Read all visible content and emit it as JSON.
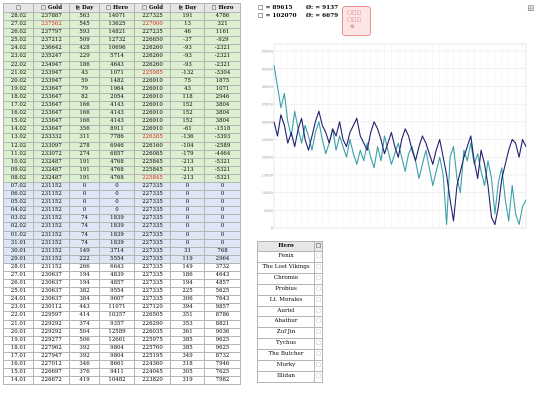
{
  "table": {
    "headers": [
      "□",
      "□ Gold",
      "⊵ Day",
      "□ Hero",
      "□ Gold",
      "⊵ Day",
      "□ Hero"
    ],
    "rows": [
      {
        "date": "28.02",
        "c1": "237887",
        "c2": "563",
        "c3": "14071",
        "c4": "227325",
        "c5": "191",
        "c6": "4786",
        "shade": "g",
        "red": false
      },
      {
        "date": "27.02",
        "c1": "237562",
        "c2": "545",
        "c3": "13625",
        "c4": "227000",
        "c5": "13",
        "c6": "321",
        "shade": "g",
        "red": true
      },
      {
        "date": "26.02",
        "c1": "237797",
        "c2": "593",
        "c3": "14821",
        "c4": "227235",
        "c5": "46",
        "c6": "1161",
        "shade": "g",
        "red": false
      },
      {
        "date": "25.02",
        "c1": "237212",
        "c2": "509",
        "c3": "12732",
        "c4": "226650",
        "c5": "-37",
        "c6": "-929",
        "shade": "g",
        "red": false
      },
      {
        "date": "24.02",
        "c1": "236642",
        "c2": "428",
        "c3": "10696",
        "c4": "226260",
        "c5": "-93",
        "c6": "-2321",
        "shade": "g",
        "red": false
      },
      {
        "date": "23.02",
        "c1": "235247",
        "c2": "229",
        "c3": "5714",
        "c4": "226260",
        "c5": "-93",
        "c6": "-2321",
        "shade": "g",
        "red": false
      },
      {
        "date": "22.02",
        "c1": "234947",
        "c2": "186",
        "c3": "4643",
        "c4": "226260",
        "c5": "-93",
        "c6": "-2321",
        "shade": "g",
        "red": false
      },
      {
        "date": "21.02",
        "c1": "233947",
        "c2": "43",
        "c3": "1071",
        "c4": "225985",
        "c5": "-132",
        "c6": "-3304",
        "shade": "g",
        "red": true
      },
      {
        "date": "20.02",
        "c1": "233947",
        "c2": "59",
        "c3": "1482",
        "c4": "226910",
        "c5": "75",
        "c6": "1875",
        "shade": "g",
        "red": false
      },
      {
        "date": "19.02",
        "c1": "233647",
        "c2": "79",
        "c3": "1964",
        "c4": "226910",
        "c5": "43",
        "c6": "1071",
        "shade": "g",
        "red": false
      },
      {
        "date": "18.02",
        "c1": "233647",
        "c2": "82",
        "c3": "2054",
        "c4": "226910",
        "c5": "118",
        "c6": "2946",
        "shade": "g",
        "red": false
      },
      {
        "date": "17.02",
        "c1": "233647",
        "c2": "166",
        "c3": "4143",
        "c4": "226910",
        "c5": "152",
        "c6": "3804",
        "shade": "g",
        "red": false
      },
      {
        "date": "16.02",
        "c1": "233647",
        "c2": "166",
        "c3": "4143",
        "c4": "226910",
        "c5": "152",
        "c6": "3804",
        "shade": "g",
        "red": false
      },
      {
        "date": "15.02",
        "c1": "233647",
        "c2": "166",
        "c3": "4143",
        "c4": "226910",
        "c5": "152",
        "c6": "3804",
        "shade": "g",
        "red": false
      },
      {
        "date": "14.02",
        "c1": "233647",
        "c2": "356",
        "c3": "8911",
        "c4": "226910",
        "c5": "-61",
        "c6": "-1518",
        "shade": "g",
        "red": false
      },
      {
        "date": "13.02",
        "c1": "233332",
        "c2": "311",
        "c3": "7786",
        "c4": "226385",
        "c5": "-136",
        "c6": "-3393",
        "shade": "g",
        "red": true
      },
      {
        "date": "12.02",
        "c1": "233097",
        "c2": "278",
        "c3": "6946",
        "c4": "226160",
        "c5": "-104",
        "c6": "-2589",
        "shade": "g",
        "red": false
      },
      {
        "date": "11.02",
        "c1": "233072",
        "c2": "274",
        "c3": "6857",
        "c4": "226085",
        "c5": "-179",
        "c6": "-4464",
        "shade": "g",
        "red": false
      },
      {
        "date": "10.02",
        "c1": "232487",
        "c2": "191",
        "c3": "4768",
        "c4": "225845",
        "c5": "-213",
        "c6": "-5321",
        "shade": "g",
        "red": false
      },
      {
        "date": "09.02",
        "c1": "232487",
        "c2": "191",
        "c3": "4768",
        "c4": "225845",
        "c5": "-213",
        "c6": "-5321",
        "shade": "g",
        "red": false
      },
      {
        "date": "08.02",
        "c1": "232487",
        "c2": "191",
        "c3": "4768",
        "c4": "225845",
        "c5": "-213",
        "c6": "-5321",
        "shade": "g",
        "red": true
      },
      {
        "date": "07.02",
        "c1": "231152",
        "c2": "0",
        "c3": "0",
        "c4": "227335",
        "c5": "0",
        "c6": "0",
        "shade": "b",
        "red": false
      },
      {
        "date": "06.02",
        "c1": "231152",
        "c2": "0",
        "c3": "0",
        "c4": "227335",
        "c5": "0",
        "c6": "0",
        "shade": "b",
        "red": false
      },
      {
        "date": "05.02",
        "c1": "231152",
        "c2": "0",
        "c3": "0",
        "c4": "227335",
        "c5": "0",
        "c6": "0",
        "shade": "b",
        "red": false
      },
      {
        "date": "04.02",
        "c1": "231152",
        "c2": "0",
        "c3": "0",
        "c4": "227335",
        "c5": "0",
        "c6": "0",
        "shade": "b",
        "red": false
      },
      {
        "date": "03.02",
        "c1": "231152",
        "c2": "74",
        "c3": "1839",
        "c4": "227335",
        "c5": "0",
        "c6": "0",
        "shade": "b",
        "red": false
      },
      {
        "date": "02.02",
        "c1": "231152",
        "c2": "74",
        "c3": "1839",
        "c4": "227335",
        "c5": "0",
        "c6": "0",
        "shade": "b",
        "red": false
      },
      {
        "date": "01.02",
        "c1": "231152",
        "c2": "74",
        "c3": "1839",
        "c4": "227335",
        "c5": "0",
        "c6": "0",
        "shade": "b",
        "red": false
      },
      {
        "date": "31.01",
        "c1": "231152",
        "c2": "74",
        "c3": "1839",
        "c4": "227335",
        "c5": "0",
        "c6": "0",
        "shade": "b",
        "red": false
      },
      {
        "date": "30.01",
        "c1": "231152",
        "c2": "149",
        "c3": "3714",
        "c4": "227335",
        "c5": "31",
        "c6": "768",
        "shade": "b",
        "red": false
      },
      {
        "date": "29.01",
        "c1": "231152",
        "c2": "222",
        "c3": "5554",
        "c4": "227335",
        "c5": "119",
        "c6": "2964",
        "shade": "b",
        "red": false
      },
      {
        "date": "28.01",
        "c1": "231152",
        "c2": "266",
        "c3": "6643",
        "c4": "227335",
        "c5": "149",
        "c6": "3732",
        "shade": "w",
        "red": false
      },
      {
        "date": "27.01",
        "c1": "230637",
        "c2": "194",
        "c3": "4839",
        "c4": "227335",
        "c5": "186",
        "c6": "4643",
        "shade": "w",
        "red": false
      },
      {
        "date": "26.01",
        "c1": "230637",
        "c2": "194",
        "c3": "4857",
        "c4": "227335",
        "c5": "194",
        "c6": "4857",
        "shade": "w",
        "red": false
      },
      {
        "date": "25.01",
        "c1": "230637",
        "c2": "382",
        "c3": "9554",
        "c4": "227335",
        "c5": "225",
        "c6": "5625",
        "shade": "w",
        "red": false
      },
      {
        "date": "24.01",
        "c1": "230637",
        "c2": "384",
        "c3": "9607",
        "c4": "227335",
        "c5": "306",
        "c6": "7643",
        "shade": "w",
        "red": false
      },
      {
        "date": "23.01",
        "c1": "230112",
        "c2": "443",
        "c3": "11071",
        "c4": "227120",
        "c5": "394",
        "c6": "9857",
        "shade": "w",
        "red": false
      },
      {
        "date": "22.01",
        "c1": "229597",
        "c2": "414",
        "c3": "10357",
        "c4": "226505",
        "c5": "351",
        "c6": "8786",
        "shade": "w",
        "red": false
      },
      {
        "date": "21.01",
        "c1": "229292",
        "c2": "374",
        "c3": "9357",
        "c4": "226290",
        "c5": "353",
        "c6": "8821",
        "shade": "w",
        "red": false
      },
      {
        "date": "20.01",
        "c1": "229292",
        "c2": "504",
        "c3": "12589",
        "c4": "226035",
        "c5": "361",
        "c6": "9036",
        "shade": "w",
        "red": false
      },
      {
        "date": "19.01",
        "c1": "229277",
        "c2": "506",
        "c3": "12661",
        "c4": "225975",
        "c5": "385",
        "c6": "9625",
        "shade": "w",
        "red": false
      },
      {
        "date": "18.01",
        "c1": "227962",
        "c2": "392",
        "c3": "9804",
        "c4": "225760",
        "c5": "385",
        "c6": "9625",
        "shade": "w",
        "red": false
      },
      {
        "date": "17.01",
        "c1": "227947",
        "c2": "392",
        "c3": "9804",
        "c4": "225195",
        "c5": "349",
        "c6": "8732",
        "shade": "w",
        "red": false
      },
      {
        "date": "16.01",
        "c1": "227012",
        "c2": "346",
        "c3": "8661",
        "c4": "224360",
        "c5": "318",
        "c6": "7946",
        "shade": "w",
        "red": false
      },
      {
        "date": "15.01",
        "c1": "226697",
        "c2": "376",
        "c3": "9411",
        "c4": "224045",
        "c5": "305",
        "c6": "7625",
        "shade": "w",
        "red": false
      },
      {
        "date": "14.01",
        "c1": "226672",
        "c2": "419",
        "c3": "10482",
        "c4": "223820",
        "c5": "319",
        "c6": "7982",
        "shade": "w",
        "red": false
      }
    ]
  },
  "stats": {
    "line1_left": "□ = 89615",
    "line2_left": "□ = 102070",
    "line1_right": "Ø: = 9137",
    "line2_right": "Ø: = 6679"
  },
  "badge": {
    "text": "□□□\n□□□\n□□"
  },
  "chart_data": {
    "type": "line",
    "title": "",
    "y_tick_labels": [
      "50000",
      "45000",
      "40000",
      "35000",
      "30000",
      "25000",
      "20000",
      "15000",
      "10000",
      "5000",
      "0"
    ],
    "ylim": [
      0,
      52000
    ],
    "grid": true,
    "series": [
      {
        "name": "",
        "color": "#1f1f6e",
        "values": [
          30000,
          26000,
          32000,
          29000,
          24000,
          27000,
          23000,
          28000,
          31000,
          25000,
          22000,
          26000,
          30000,
          33000,
          29000,
          27000,
          24000,
          28000,
          26000,
          30000,
          25000,
          23000,
          27000,
          29000,
          31000,
          26000,
          24000,
          22000,
          27000,
          30000,
          28000,
          25000,
          21000,
          24000,
          27000,
          23000,
          20000,
          25000,
          28000,
          26000,
          22000,
          19000,
          23000,
          26000,
          24000,
          21000,
          18000,
          22000,
          25000,
          20000,
          15000,
          8000,
          2000,
          12000,
          16000,
          20000,
          23000,
          26000,
          19000,
          14000,
          22000,
          18000,
          12000,
          3000,
          1000,
          6000,
          14000,
          18000,
          22000,
          25000,
          24000,
          20000,
          25000,
          23000
        ]
      },
      {
        "name": "",
        "color": "#3aa0a8",
        "values": [
          46000,
          40000,
          34000,
          38000,
          30000,
          26000,
          33000,
          28000,
          24000,
          29000,
          26000,
          22000,
          27000,
          30000,
          25000,
          21000,
          24000,
          28000,
          22000,
          26000,
          23000,
          20000,
          25000,
          21000,
          18000,
          22000,
          19000,
          24000,
          20000,
          17000,
          23000,
          19000,
          26000,
          22000,
          18000,
          21000,
          24000,
          20000,
          16000,
          21000,
          23000,
          19000,
          14000,
          18000,
          22000,
          17000,
          12000,
          16000,
          20000,
          15000,
          1000,
          20000,
          23000,
          14000,
          10000,
          22000,
          19000,
          24000,
          18000,
          21000,
          16000,
          12000,
          19000,
          14000,
          4000,
          13000,
          17000,
          8000,
          2000,
          12000,
          4000,
          1000,
          6000,
          8000
        ]
      }
    ]
  },
  "hero_table": {
    "header": "Hero",
    "names": [
      "Fenix",
      "The Lost Vikings",
      "Chromie",
      "Probius",
      "Lt. Morales",
      "Auriel",
      "Abathur",
      "Zul'Jin",
      "Tychus",
      "The Butcher",
      "Murky",
      "Illidan"
    ]
  }
}
